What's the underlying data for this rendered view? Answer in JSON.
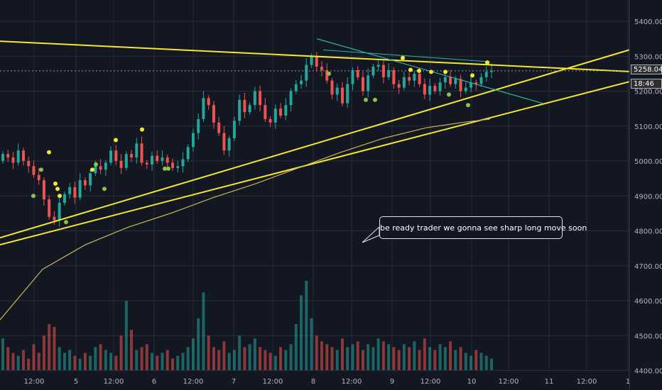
{
  "chart_data": {
    "type": "candlestick",
    "y_axis": {
      "ticks": [
        "5400.00",
        "5300.00",
        "5200.00",
        "5100.00",
        "5000.00",
        "4900.00",
        "4800.00",
        "4700.00",
        "4600.00",
        "4500.00",
        "4400.00"
      ],
      "tick_values": [
        5400,
        5300,
        5200,
        5100,
        5000,
        4900,
        4800,
        4700,
        4600,
        4500,
        4400
      ],
      "range": [
        4400,
        5450
      ]
    },
    "x_axis": {
      "ticks": [
        "12:00",
        "5",
        "12:00",
        "6",
        "12:00",
        "7",
        "12:00",
        "8",
        "12:00",
        "9",
        "12:00",
        "10",
        "12:00",
        "11",
        "12:00",
        "1"
      ]
    },
    "last_price": "5258.04",
    "countdown": "18:46",
    "candles_close": [
      5020,
      5010,
      4995,
      5030,
      5000,
      4985,
      4960,
      4945,
      4890,
      4840,
      4830,
      4880,
      4905,
      4925,
      4895,
      4945,
      4930,
      4965,
      4985,
      4975,
      4995,
      5030,
      5000,
      4980,
      5020,
      5010,
      5050,
      4995,
      4990,
      5015,
      5000,
      5010,
      4995,
      4980,
      4985,
      5005,
      5040,
      5080,
      5120,
      5180,
      5160,
      5110,
      5080,
      5030,
      5065,
      5115,
      5175,
      5140,
      5160,
      5200,
      5160,
      5120,
      5110,
      5150,
      5130,
      5160,
      5200,
      5220,
      5230,
      5275,
      5300,
      5270,
      5260,
      5230,
      5190,
      5210,
      5165,
      5220,
      5260,
      5240,
      5200,
      5245,
      5270,
      5275,
      5240,
      5260,
      5220,
      5210,
      5240,
      5230,
      5250,
      5220,
      5190,
      5215,
      5200,
      5225,
      5240,
      5220,
      5235,
      5200,
      5210,
      5225,
      5220,
      5240,
      5255,
      5258
    ],
    "candles_open": [
      5000,
      5020,
      5010,
      4995,
      5030,
      5000,
      4985,
      4960,
      4945,
      4890,
      4840,
      4830,
      4880,
      4905,
      4925,
      4895,
      4945,
      4930,
      4965,
      4985,
      4975,
      4995,
      5030,
      5000,
      4980,
      5020,
      5010,
      5050,
      4995,
      4990,
      5015,
      5000,
      5010,
      4995,
      4980,
      4985,
      5005,
      5040,
      5080,
      5120,
      5180,
      5160,
      5110,
      5080,
      5030,
      5065,
      5115,
      5175,
      5140,
      5160,
      5200,
      5160,
      5120,
      5110,
      5150,
      5130,
      5160,
      5200,
      5220,
      5230,
      5275,
      5300,
      5270,
      5260,
      5230,
      5190,
      5210,
      5165,
      5220,
      5260,
      5240,
      5200,
      5245,
      5270,
      5275,
      5240,
      5260,
      5220,
      5210,
      5240,
      5230,
      5250,
      5220,
      5190,
      5215,
      5200,
      5225,
      5240,
      5220,
      5235,
      5200,
      5210,
      5225,
      5220,
      5240,
      5255
    ],
    "volume": [
      55,
      40,
      30,
      25,
      35,
      20,
      45,
      30,
      60,
      80,
      75,
      40,
      30,
      35,
      25,
      20,
      30,
      25,
      40,
      45,
      35,
      30,
      25,
      60,
      120,
      70,
      35,
      40,
      45,
      30,
      25,
      30,
      35,
      20,
      25,
      30,
      40,
      55,
      90,
      135,
      60,
      40,
      35,
      50,
      30,
      35,
      60,
      40,
      45,
      55,
      40,
      35,
      30,
      25,
      40,
      35,
      45,
      80,
      130,
      155,
      90,
      60,
      50,
      45,
      40,
      35,
      55,
      40,
      45,
      50,
      35,
      45,
      40,
      55,
      50,
      45,
      40,
      35,
      45,
      40,
      50,
      35,
      55,
      40,
      35,
      45,
      40,
      50,
      35,
      40,
      30,
      25,
      35,
      30,
      25,
      20
    ],
    "volume_max": 160,
    "annotation": "be ready trader we gonna see  sharp long  move soon"
  },
  "colors": {
    "background": "#131722",
    "up": "#26a69a",
    "down": "#ef5350",
    "trendline": "#f5e634",
    "ma": "#c9b458",
    "grid": "#2a2e39",
    "teal_line": "#2fb4a8"
  }
}
